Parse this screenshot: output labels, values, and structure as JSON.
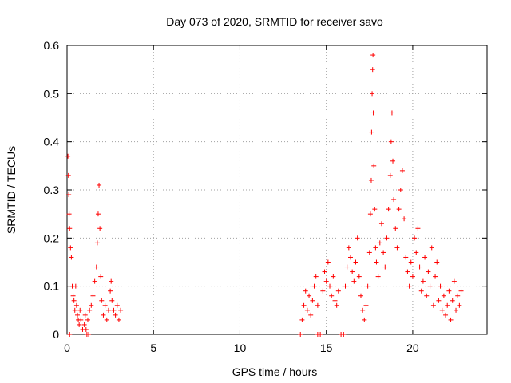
{
  "chart_data": {
    "type": "scatter",
    "title": "Day 073 of 2020, SRMTID for receiver savo",
    "xlabel": "GPS time / hours",
    "ylabel": "SRMTID / TECUs",
    "xlim": [
      0,
      24.3
    ],
    "ylim": [
      0,
      0.6
    ],
    "x_ticks": [
      0,
      5,
      10,
      15,
      20
    ],
    "x_tick_labels": [
      "0",
      "5",
      "10",
      "15",
      "20"
    ],
    "y_ticks": [
      0,
      0.1,
      0.2,
      0.3,
      0.4,
      0.5,
      0.6
    ],
    "y_tick_labels": [
      "0",
      "0.1",
      "0.2",
      "0.3",
      "0.4",
      "0.5",
      "0.6"
    ],
    "grid": true,
    "marker": "+",
    "color": "#ff0000",
    "series": [
      {
        "name": "SRMTID",
        "points": [
          [
            0.05,
            0.37
          ],
          [
            0.08,
            0.33
          ],
          [
            0.1,
            0.29
          ],
          [
            0.12,
            0.25
          ],
          [
            0.15,
            0.22
          ],
          [
            0.2,
            0.18
          ],
          [
            0.25,
            0.16
          ],
          [
            0.3,
            0.1
          ],
          [
            0.35,
            0.08
          ],
          [
            0.4,
            0.07
          ],
          [
            0.45,
            0.05
          ],
          [
            0.5,
            0.1
          ],
          [
            0.55,
            0.06
          ],
          [
            0.6,
            0.04
          ],
          [
            0.65,
            0.03
          ],
          [
            0.7,
            0.02
          ],
          [
            0.75,
            0.05
          ],
          [
            0.8,
            0.03
          ],
          [
            0.9,
            0.01
          ],
          [
            1.0,
            0.02
          ],
          [
            1.05,
            0.04
          ],
          [
            1.1,
            0.01
          ],
          [
            1.2,
            0.03
          ],
          [
            1.3,
            0.05
          ],
          [
            1.4,
            0.06
          ],
          [
            1.5,
            0.08
          ],
          [
            1.6,
            0.11
          ],
          [
            1.7,
            0.14
          ],
          [
            1.75,
            0.19
          ],
          [
            1.8,
            0.25
          ],
          [
            1.85,
            0.31
          ],
          [
            1.9,
            0.22
          ],
          [
            1.95,
            0.12
          ],
          [
            2.0,
            0.07
          ],
          [
            2.1,
            0.04
          ],
          [
            2.2,
            0.06
          ],
          [
            2.3,
            0.03
          ],
          [
            2.4,
            0.05
          ],
          [
            2.5,
            0.09
          ],
          [
            2.55,
            0.11
          ],
          [
            2.6,
            0.07
          ],
          [
            2.7,
            0.05
          ],
          [
            2.8,
            0.04
          ],
          [
            2.9,
            0.06
          ],
          [
            3.0,
            0.03
          ],
          [
            3.1,
            0.05
          ],
          [
            0.15,
            0.0
          ],
          [
            1.15,
            0.0
          ],
          [
            1.25,
            0.0
          ],
          [
            13.5,
            0.0
          ],
          [
            13.6,
            0.03
          ],
          [
            13.7,
            0.06
          ],
          [
            13.8,
            0.09
          ],
          [
            13.9,
            0.05
          ],
          [
            14.0,
            0.08
          ],
          [
            14.1,
            0.04
          ],
          [
            14.2,
            0.07
          ],
          [
            14.3,
            0.1
          ],
          [
            14.4,
            0.12
          ],
          [
            14.5,
            0.06
          ],
          [
            14.5,
            0.0
          ],
          [
            14.65,
            0.0
          ],
          [
            14.8,
            0.09
          ],
          [
            14.9,
            0.13
          ],
          [
            15.0,
            0.11
          ],
          [
            15.1,
            0.15
          ],
          [
            15.2,
            0.1
          ],
          [
            15.3,
            0.08
          ],
          [
            15.4,
            0.12
          ],
          [
            15.5,
            0.07
          ],
          [
            15.6,
            0.06
          ],
          [
            15.7,
            0.09
          ],
          [
            15.85,
            0.0
          ],
          [
            16.0,
            0.0
          ],
          [
            16.1,
            0.1
          ],
          [
            16.2,
            0.14
          ],
          [
            16.3,
            0.18
          ],
          [
            16.4,
            0.16
          ],
          [
            16.5,
            0.13
          ],
          [
            16.6,
            0.11
          ],
          [
            16.7,
            0.15
          ],
          [
            16.8,
            0.2
          ],
          [
            16.9,
            0.12
          ],
          [
            17.0,
            0.08
          ],
          [
            17.1,
            0.05
          ],
          [
            17.2,
            0.03
          ],
          [
            17.3,
            0.06
          ],
          [
            17.4,
            0.1
          ],
          [
            17.5,
            0.17
          ],
          [
            17.55,
            0.25
          ],
          [
            17.6,
            0.32
          ],
          [
            17.62,
            0.42
          ],
          [
            17.65,
            0.5
          ],
          [
            17.68,
            0.55
          ],
          [
            17.7,
            0.58
          ],
          [
            17.72,
            0.46
          ],
          [
            17.75,
            0.35
          ],
          [
            17.8,
            0.26
          ],
          [
            17.85,
            0.18
          ],
          [
            17.9,
            0.15
          ],
          [
            18.0,
            0.12
          ],
          [
            18.1,
            0.19
          ],
          [
            18.2,
            0.23
          ],
          [
            18.3,
            0.17
          ],
          [
            18.4,
            0.14
          ],
          [
            18.5,
            0.2
          ],
          [
            18.6,
            0.26
          ],
          [
            18.7,
            0.33
          ],
          [
            18.75,
            0.4
          ],
          [
            18.8,
            0.46
          ],
          [
            18.85,
            0.36
          ],
          [
            18.9,
            0.28
          ],
          [
            19.0,
            0.22
          ],
          [
            19.1,
            0.18
          ],
          [
            19.2,
            0.26
          ],
          [
            19.3,
            0.3
          ],
          [
            19.4,
            0.34
          ],
          [
            19.5,
            0.24
          ],
          [
            19.6,
            0.16
          ],
          [
            19.7,
            0.13
          ],
          [
            19.8,
            0.1
          ],
          [
            19.9,
            0.15
          ],
          [
            20.0,
            0.12
          ],
          [
            20.1,
            0.2
          ],
          [
            20.2,
            0.17
          ],
          [
            20.3,
            0.22
          ],
          [
            20.4,
            0.14
          ],
          [
            20.5,
            0.09
          ],
          [
            20.6,
            0.11
          ],
          [
            20.7,
            0.16
          ],
          [
            20.8,
            0.08
          ],
          [
            20.9,
            0.13
          ],
          [
            21.0,
            0.1
          ],
          [
            21.1,
            0.18
          ],
          [
            21.2,
            0.06
          ],
          [
            21.3,
            0.12
          ],
          [
            21.4,
            0.15
          ],
          [
            21.5,
            0.07
          ],
          [
            21.6,
            0.1
          ],
          [
            21.7,
            0.05
          ],
          [
            21.8,
            0.08
          ],
          [
            21.9,
            0.04
          ],
          [
            22.0,
            0.06
          ],
          [
            22.1,
            0.09
          ],
          [
            22.2,
            0.03
          ],
          [
            22.3,
            0.07
          ],
          [
            22.4,
            0.11
          ],
          [
            22.5,
            0.05
          ],
          [
            22.6,
            0.08
          ],
          [
            22.7,
            0.06
          ],
          [
            22.8,
            0.09
          ]
        ]
      }
    ]
  }
}
